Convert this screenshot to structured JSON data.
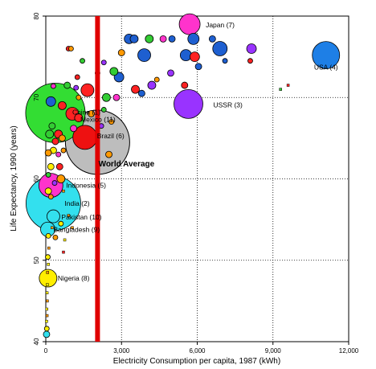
{
  "chart_data": {
    "type": "scatter",
    "title": "",
    "xlabel": "Electricity Consumption per capita, 1987 (kWh)",
    "ylabel": "Life Expectancy, 1990 (years)",
    "xlim": [
      0,
      12000
    ],
    "ylim": [
      40,
      80
    ],
    "x_ticks": [
      "0",
      "3,000",
      "6,000",
      "9,000",
      "12,000"
    ],
    "y_ticks": [
      "40",
      "50",
      "60",
      "70",
      "80"
    ],
    "grid": "dotted",
    "average_line": {
      "x": 2050,
      "color": "#e00000"
    },
    "world_average": {
      "x": 2050,
      "y": 64.5,
      "label": "World Average"
    },
    "points": [
      {
        "name": "Japan",
        "label": "Japan (7)",
        "x": 5700,
        "y": 79,
        "size": 13,
        "color": "#ff33cc"
      },
      {
        "name": "USA",
        "label": "USA (4)",
        "x": 11100,
        "y": 75.2,
        "size": 17,
        "color": "#1e7fe6"
      },
      {
        "name": "USSR",
        "label": "USSR (3)",
        "x": 5650,
        "y": 69.2,
        "size": 18,
        "color": "#9933ff"
      },
      {
        "name": "China",
        "label": "China (1)",
        "x": 380,
        "y": 68.1,
        "size": 37,
        "color": "#33dd33"
      },
      {
        "name": "Mexico",
        "label": "Mexico (11)",
        "x": 1050,
        "y": 68,
        "size": 8,
        "color": "#ff2222"
      },
      {
        "name": "Brazil",
        "label": "Brazil (6)",
        "x": 1550,
        "y": 65.1,
        "size": 15,
        "color": "#ee1111"
      },
      {
        "name": "Indonesia",
        "label": "Indonesia (5)",
        "x": 200,
        "y": 59.2,
        "size": 15,
        "color": "#ff33cc"
      },
      {
        "name": "India",
        "label": "India (2)",
        "x": 300,
        "y": 57,
        "size": 34,
        "color": "#33e0ee"
      },
      {
        "name": "Pakistan",
        "label": "Pakistan (10)",
        "x": 300,
        "y": 55.4,
        "size": 8,
        "color": "#33e0ee"
      },
      {
        "name": "Bangladesh",
        "label": "Bangladesh (9)",
        "x": 80,
        "y": 53.8,
        "size": 9,
        "color": "#33e0ee"
      },
      {
        "name": "Nigeria",
        "label": "Nigeria (8)",
        "x": 90,
        "y": 47.8,
        "size": 11,
        "color": "#ffee00"
      },
      {
        "name": "",
        "x": 3300,
        "y": 77.2,
        "size": 6,
        "color": "#1e5fd0"
      },
      {
        "name": "",
        "x": 3500,
        "y": 77.2,
        "size": 5,
        "color": "#1e5fd0"
      },
      {
        "name": "",
        "x": 4100,
        "y": 77.2,
        "size": 5,
        "color": "#33cc33"
      },
      {
        "name": "",
        "x": 4650,
        "y": 77.2,
        "size": 4,
        "color": "#ff33cc"
      },
      {
        "name": "",
        "x": 5000,
        "y": 77.2,
        "size": 4,
        "color": "#1e5fd0"
      },
      {
        "name": "",
        "x": 5850,
        "y": 77.2,
        "size": 7,
        "color": "#1e5fd0"
      },
      {
        "name": "",
        "x": 6600,
        "y": 77.2,
        "size": 4,
        "color": "#1e5fd0"
      },
      {
        "name": "",
        "x": 3000,
        "y": 75.5,
        "size": 4,
        "color": "#ff9900"
      },
      {
        "name": "",
        "x": 3900,
        "y": 75.2,
        "size": 8,
        "color": "#1e5fd0"
      },
      {
        "name": "",
        "x": 5550,
        "y": 75.2,
        "size": 7,
        "color": "#1e5fd0"
      },
      {
        "name": "",
        "x": 5900,
        "y": 75,
        "size": 6,
        "color": "#ff2222"
      },
      {
        "name": "",
        "x": 6900,
        "y": 76,
        "size": 9,
        "color": "#1e5fd0"
      },
      {
        "name": "",
        "x": 8150,
        "y": 76,
        "size": 6,
        "color": "#9933ff"
      },
      {
        "name": "",
        "x": 6050,
        "y": 73.8,
        "size": 4,
        "color": "#1e5fd0"
      },
      {
        "name": "",
        "x": 7100,
        "y": 74.5,
        "size": 3,
        "color": "#1e5fd0"
      },
      {
        "name": "",
        "x": 8100,
        "y": 74.5,
        "size": 3,
        "color": "#ff2222"
      },
      {
        "name": "",
        "x": 2300,
        "y": 74.3,
        "size": 3,
        "color": "#9933ff"
      },
      {
        "name": "",
        "x": 2700,
        "y": 73.2,
        "size": 5,
        "color": "#33cc33"
      },
      {
        "name": "",
        "x": 2900,
        "y": 72.5,
        "size": 6,
        "color": "#1e5fd0"
      },
      {
        "name": "",
        "x": 3550,
        "y": 71,
        "size": 5,
        "color": "#ff2222"
      },
      {
        "name": "",
        "x": 4200,
        "y": 71.5,
        "size": 5,
        "color": "#9933ff"
      },
      {
        "name": "",
        "x": 3800,
        "y": 70.5,
        "size": 4,
        "color": "#1e5fd0"
      },
      {
        "name": "",
        "x": 4400,
        "y": 72.2,
        "size": 3,
        "color": "#ff9900"
      },
      {
        "name": "",
        "x": 4950,
        "y": 73,
        "size": 4,
        "color": "#9933ff"
      },
      {
        "name": "",
        "x": 5500,
        "y": 71.5,
        "size": 4,
        "color": "#ff2222"
      },
      {
        "name": "",
        "x": 9300,
        "y": 71,
        "size": 2,
        "color": "#33cc33"
      },
      {
        "name": "",
        "x": 9600,
        "y": 71.5,
        "size": 2,
        "color": "#ff2222"
      },
      {
        "name": "",
        "x": 1650,
        "y": 70.9,
        "size": 8,
        "color": "#ff2222"
      },
      {
        "name": "",
        "x": 2400,
        "y": 70,
        "size": 5,
        "color": "#33cc33"
      },
      {
        "name": "",
        "x": 2800,
        "y": 70,
        "size": 4,
        "color": "#ff33cc"
      },
      {
        "name": "",
        "x": 1300,
        "y": 70,
        "size": 3,
        "color": "#ff9900"
      },
      {
        "name": "",
        "x": 1200,
        "y": 71.2,
        "size": 3,
        "color": "#9933ff"
      },
      {
        "name": "",
        "x": 1250,
        "y": 72.5,
        "size": 3,
        "color": "#ff2222"
      },
      {
        "name": "",
        "x": 850,
        "y": 71.5,
        "size": 4,
        "color": "#33cc33"
      },
      {
        "name": "",
        "x": 300,
        "y": 71.4,
        "size": 3,
        "color": "#ff33cc"
      },
      {
        "name": "",
        "x": 900,
        "y": 76,
        "size": 3,
        "color": "#ff2222"
      },
      {
        "name": "",
        "x": 1000,
        "y": 76,
        "size": 3,
        "color": "#ff9900"
      },
      {
        "name": "",
        "x": 1450,
        "y": 74.5,
        "size": 3,
        "color": "#33cc33"
      },
      {
        "name": "",
        "x": 2050,
        "y": 73,
        "size": 3,
        "color": "#ff9900"
      },
      {
        "name": "",
        "x": 200,
        "y": 69.5,
        "size": 6,
        "color": "#1e5fd0"
      },
      {
        "name": "",
        "x": 650,
        "y": 69,
        "size": 5,
        "color": "#ff2222"
      },
      {
        "name": "",
        "x": 1300,
        "y": 67.5,
        "size": 5,
        "color": "#ff2222"
      },
      {
        "name": "",
        "x": 1800,
        "y": 68,
        "size": 4,
        "color": "#ff9900"
      },
      {
        "name": "",
        "x": 2300,
        "y": 68.5,
        "size": 3,
        "color": "#33cc33"
      },
      {
        "name": "",
        "x": 2200,
        "y": 66.5,
        "size": 3,
        "color": "#9933ff"
      },
      {
        "name": "",
        "x": 2600,
        "y": 67,
        "size": 3,
        "color": "#ff9900"
      },
      {
        "name": "",
        "x": 1100,
        "y": 66.2,
        "size": 4,
        "color": "#ff33cc"
      },
      {
        "name": "",
        "x": 500,
        "y": 65.5,
        "size": 5,
        "color": "#ff2222"
      },
      {
        "name": "",
        "x": 650,
        "y": 65,
        "size": 4,
        "color": "#ff9900"
      },
      {
        "name": "",
        "x": 380,
        "y": 64.6,
        "size": 4,
        "color": "#ff2222"
      },
      {
        "name": "",
        "x": 250,
        "y": 66.5,
        "size": 4,
        "color": "#33cc33"
      },
      {
        "name": "",
        "x": 150,
        "y": 65.5,
        "size": 5,
        "color": "#33cc33"
      },
      {
        "name": "",
        "x": 300,
        "y": 63.5,
        "size": 4,
        "color": "#ffee00"
      },
      {
        "name": "",
        "x": 100,
        "y": 63.2,
        "size": 4,
        "color": "#ff9900"
      },
      {
        "name": "",
        "x": 500,
        "y": 63,
        "size": 3,
        "color": "#ff33cc"
      },
      {
        "name": "",
        "x": 700,
        "y": 63.5,
        "size": 3,
        "color": "#ff9900"
      },
      {
        "name": "",
        "x": 2500,
        "y": 63,
        "size": 4,
        "color": "#ff9900"
      },
      {
        "name": "",
        "x": 200,
        "y": 61.5,
        "size": 4,
        "color": "#ffee00"
      },
      {
        "name": "",
        "x": 550,
        "y": 61.5,
        "size": 4,
        "color": "#ff2222"
      },
      {
        "name": "",
        "x": 100,
        "y": 60.5,
        "size": 3,
        "color": "#33cc33"
      },
      {
        "name": "",
        "x": 600,
        "y": 60,
        "size": 5,
        "color": "#ff9900"
      },
      {
        "name": "",
        "x": 350,
        "y": 59.5,
        "size": 3,
        "color": "#9933ff"
      },
      {
        "name": "",
        "x": 100,
        "y": 58.5,
        "size": 4,
        "color": "#ffee00"
      },
      {
        "name": "",
        "x": 200,
        "y": 57.8,
        "size": 3,
        "color": "#ff9900"
      },
      {
        "name": "",
        "x": 700,
        "y": 58.5,
        "size": 2,
        "color": "#ff9900"
      },
      {
        "name": "",
        "x": 900,
        "y": 55.5,
        "size": 2,
        "color": "#ff9900"
      },
      {
        "name": "",
        "x": 600,
        "y": 54.5,
        "size": 3,
        "color": "#ffee00"
      },
      {
        "name": "",
        "x": 250,
        "y": 54,
        "size": 2,
        "color": "#ff9900"
      },
      {
        "name": "",
        "x": 100,
        "y": 53,
        "size": 3,
        "color": "#ffee00"
      },
      {
        "name": "",
        "x": 1050,
        "y": 54,
        "size": 2,
        "color": "#ff9900"
      },
      {
        "name": "",
        "x": 380,
        "y": 52.8,
        "size": 3,
        "color": "#ff9900"
      },
      {
        "name": "",
        "x": 750,
        "y": 52.5,
        "size": 2,
        "color": "#ffee00"
      },
      {
        "name": "",
        "x": 120,
        "y": 51.5,
        "size": 2,
        "color": "#ff9900"
      },
      {
        "name": "",
        "x": 700,
        "y": 51,
        "size": 2,
        "color": "#ff2222"
      },
      {
        "name": "",
        "x": 80,
        "y": 50.4,
        "size": 3,
        "color": "#ffee00"
      },
      {
        "name": "",
        "x": 100,
        "y": 49.5,
        "size": 2,
        "color": "#ffee00"
      },
      {
        "name": "",
        "x": 70,
        "y": 48.5,
        "size": 2,
        "color": "#ff9900"
      },
      {
        "name": "",
        "x": 60,
        "y": 47,
        "size": 2,
        "color": "#ffee00"
      },
      {
        "name": "",
        "x": 50,
        "y": 46,
        "size": 2,
        "color": "#ffee00"
      },
      {
        "name": "",
        "x": 60,
        "y": 45,
        "size": 2,
        "color": "#ff9900"
      },
      {
        "name": "",
        "x": 40,
        "y": 44,
        "size": 2,
        "color": "#ffee00"
      },
      {
        "name": "",
        "x": 50,
        "y": 43.2,
        "size": 2,
        "color": "#ff9900"
      },
      {
        "name": "",
        "x": 30,
        "y": 42.5,
        "size": 2,
        "color": "#ffee00"
      },
      {
        "name": "",
        "x": 40,
        "y": 41.6,
        "size": 3,
        "color": "#ffee00"
      },
      {
        "name": "",
        "x": 30,
        "y": 40.9,
        "size": 4,
        "color": "#33e0ee"
      }
    ]
  }
}
